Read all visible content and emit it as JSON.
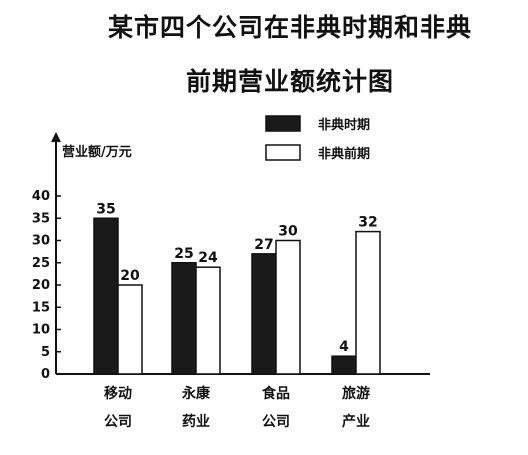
{
  "chart_data": {
    "type": "bar",
    "title_line1": "某市四个公司在非典时期和非典",
    "title_line2": "前期营业额统计图",
    "ylabel": "营业额/万元",
    "ylim": [
      0,
      40
    ],
    "yticks": [
      "0",
      "5",
      "10",
      "15",
      "20",
      "25",
      "30",
      "35",
      "40"
    ],
    "categories": [
      [
        "移动",
        "公司"
      ],
      [
        "永康",
        "药业"
      ],
      [
        "食品",
        "公司"
      ],
      [
        "旅游",
        "产业"
      ]
    ],
    "series": [
      {
        "name": "非典时期",
        "values": [
          35,
          25,
          27,
          4
        ],
        "color": "#1a1a1a"
      },
      {
        "name": "非典前期",
        "values": [
          20,
          24,
          30,
          32
        ],
        "color": "#ffffff"
      }
    ],
    "legend_position": "top-right",
    "grid": false
  }
}
